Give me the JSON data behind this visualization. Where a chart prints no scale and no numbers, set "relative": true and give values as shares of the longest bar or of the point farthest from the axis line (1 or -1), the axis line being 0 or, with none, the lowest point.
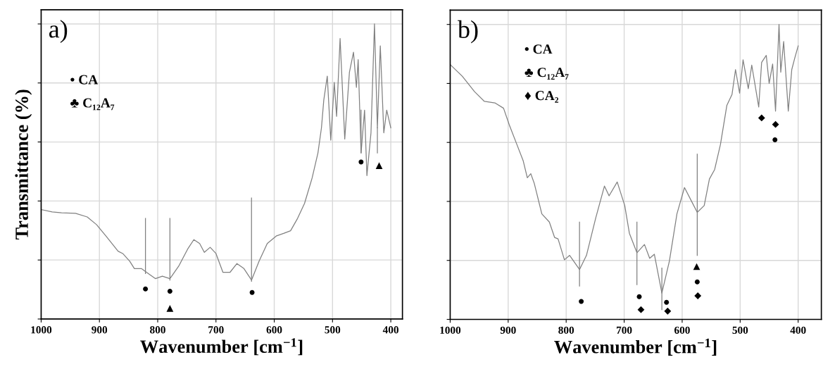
{
  "chart_data": [
    {
      "type": "line",
      "relative": true,
      "ylabel": "Transmittance (%)",
      "xlabel": "Wavenumber [cm$^{−1}$]",
      "xlim": [
        1000,
        380
      ],
      "xticks": [
        1000,
        900,
        800,
        700,
        600,
        500,
        400
      ],
      "grid": true,
      "marker": "none",
      "line_style": "solid",
      "series": [
        {
          "color": "#808080",
          "x": [
            1000,
            981,
            965,
            941,
            921,
            905,
            889,
            868,
            860,
            848,
            840,
            828,
            816,
            804,
            792,
            779,
            764,
            748,
            738,
            728,
            720,
            710,
            700,
            688,
            676,
            664,
            652,
            639,
            626,
            612,
            596,
            584,
            572,
            560,
            548,
            535,
            525,
            519,
            515,
            509,
            503,
            497,
            493,
            487,
            479,
            471,
            464,
            459,
            456,
            451,
            445,
            441,
            434,
            428,
            423,
            418,
            412,
            407,
            400
          ],
          "values": [
            0.371,
            0.363,
            0.36,
            0.358,
            0.346,
            0.32,
            0.282,
            0.23,
            0.222,
            0.196,
            0.171,
            0.171,
            0.154,
            0.137,
            0.145,
            0.137,
            0.179,
            0.239,
            0.269,
            0.256,
            0.226,
            0.243,
            0.222,
            0.158,
            0.158,
            0.188,
            0.171,
            0.132,
            0.196,
            0.256,
            0.282,
            0.29,
            0.299,
            0.341,
            0.392,
            0.478,
            0.563,
            0.648,
            0.742,
            0.823,
            0.606,
            0.802,
            0.687,
            0.951,
            0.61,
            0.836,
            0.904,
            0.785,
            0.879,
            0.563,
            0.708,
            0.486,
            0.631,
            1.0,
            0.648,
            0.926,
            0.631,
            0.708,
            0.648
          ]
        },
        {
          "type": "line",
          "color": "#808080",
          "x": [
            821,
            821
          ],
          "values": [
            0.154,
            0.341
          ]
        },
        {
          "type": "line",
          "color": "#808080",
          "x": [
            779,
            779
          ],
          "values": [
            0.132,
            0.341
          ]
        },
        {
          "type": "line",
          "color": "#808080",
          "x": [
            639,
            639
          ],
          "values": [
            0.128,
            0.41
          ]
        },
        {
          "type": "line",
          "color": "#808080",
          "x": [
            451,
            451
          ],
          "values": [
            0.563,
            0.708
          ]
        },
        {
          "type": "line",
          "color": "#808080",
          "x": [
            423,
            423
          ],
          "values": [
            0.563,
            0.648
          ]
        },
        {
          "type": "scatter",
          "marker": "circle",
          "color": "#000000",
          "x": [
            821,
            779,
            638,
            451
          ],
          "values": [
            0.102,
            0.094,
            0.09,
            0.532
          ]
        },
        {
          "type": "scatter",
          "marker": "triangle",
          "color": "#000000",
          "x": [
            779,
            420
          ],
          "values": [
            0.036,
            0.52
          ]
        }
      ],
      "annotations": [
        "a)",
        "• CA",
        "♣ C₁₂A₇"
      ]
    },
    {
      "type": "line",
      "relative": true,
      "xlabel": "Wavenumber [cm$^{−1}$]",
      "xlim": [
        1000,
        360
      ],
      "xticks": [
        1000,
        900,
        800,
        700,
        600,
        500,
        400
      ],
      "grid": true,
      "marker": "none",
      "line_style": "solid",
      "series": [
        {
          "color": "#808080",
          "x": [
            1000,
            979,
            958,
            941,
            923,
            908,
            898,
            885,
            874,
            867,
            861,
            855,
            842,
            829,
            820,
            814,
            803,
            794,
            777,
            765,
            749,
            734,
            726,
            712,
            699,
            691,
            678,
            665,
            656,
            648,
            635,
            622,
            609,
            596,
            585,
            574,
            562,
            553,
            544,
            534,
            523,
            514,
            508,
            501,
            495,
            486,
            480,
            468,
            463,
            455,
            450,
            444,
            439,
            433,
            430,
            425,
            417,
            411,
            406,
            400
          ],
          "values": [
            0.864,
            0.824,
            0.772,
            0.739,
            0.734,
            0.716,
            0.659,
            0.593,
            0.537,
            0.48,
            0.494,
            0.461,
            0.358,
            0.33,
            0.278,
            0.273,
            0.202,
            0.217,
            0.169,
            0.217,
            0.344,
            0.452,
            0.419,
            0.466,
            0.386,
            0.292,
            0.226,
            0.254,
            0.207,
            0.221,
            0.089,
            0.198,
            0.358,
            0.447,
            0.405,
            0.363,
            0.386,
            0.476,
            0.508,
            0.593,
            0.725,
            0.763,
            0.847,
            0.767,
            0.88,
            0.782,
            0.862,
            0.72,
            0.871,
            0.895,
            0.8,
            0.866,
            0.706,
            1.0,
            0.838,
            0.942,
            0.706,
            0.847,
            0.885,
            0.927
          ]
        },
        {
          "type": "line",
          "color": "#808080",
          "x": [
            777,
            777
          ],
          "values": [
            0.113,
            0.33
          ]
        },
        {
          "type": "line",
          "color": "#808080",
          "x": [
            678,
            678
          ],
          "values": [
            0.118,
            0.33
          ]
        },
        {
          "type": "line",
          "color": "#808080",
          "x": [
            635,
            635
          ],
          "values": [
            0.033,
            0.174
          ]
        },
        {
          "type": "line",
          "color": "#808080",
          "x": [
            574,
            574
          ],
          "values": [
            0.217,
            0.56
          ]
        },
        {
          "type": "scatter",
          "marker": "circle",
          "color": "#000000",
          "x": [
            774,
            674,
            627,
            574,
            440
          ],
          "values": [
            0.061,
            0.077,
            0.058,
            0.127,
            0.609
          ]
        },
        {
          "type": "scatter",
          "marker": "diamond",
          "color": "#000000",
          "x": [
            671,
            625,
            573,
            463,
            439
          ],
          "values": [
            0.033,
            0.028,
            0.08,
            0.683,
            0.661
          ]
        },
        {
          "type": "scatter",
          "marker": "triangle",
          "color": "#000000",
          "x": [
            575
          ],
          "values": [
            0.179
          ]
        }
      ],
      "annotations": [
        "b)",
        "• CA",
        "♣ C₁₂A₇",
        "♦ CA₂"
      ]
    }
  ]
}
